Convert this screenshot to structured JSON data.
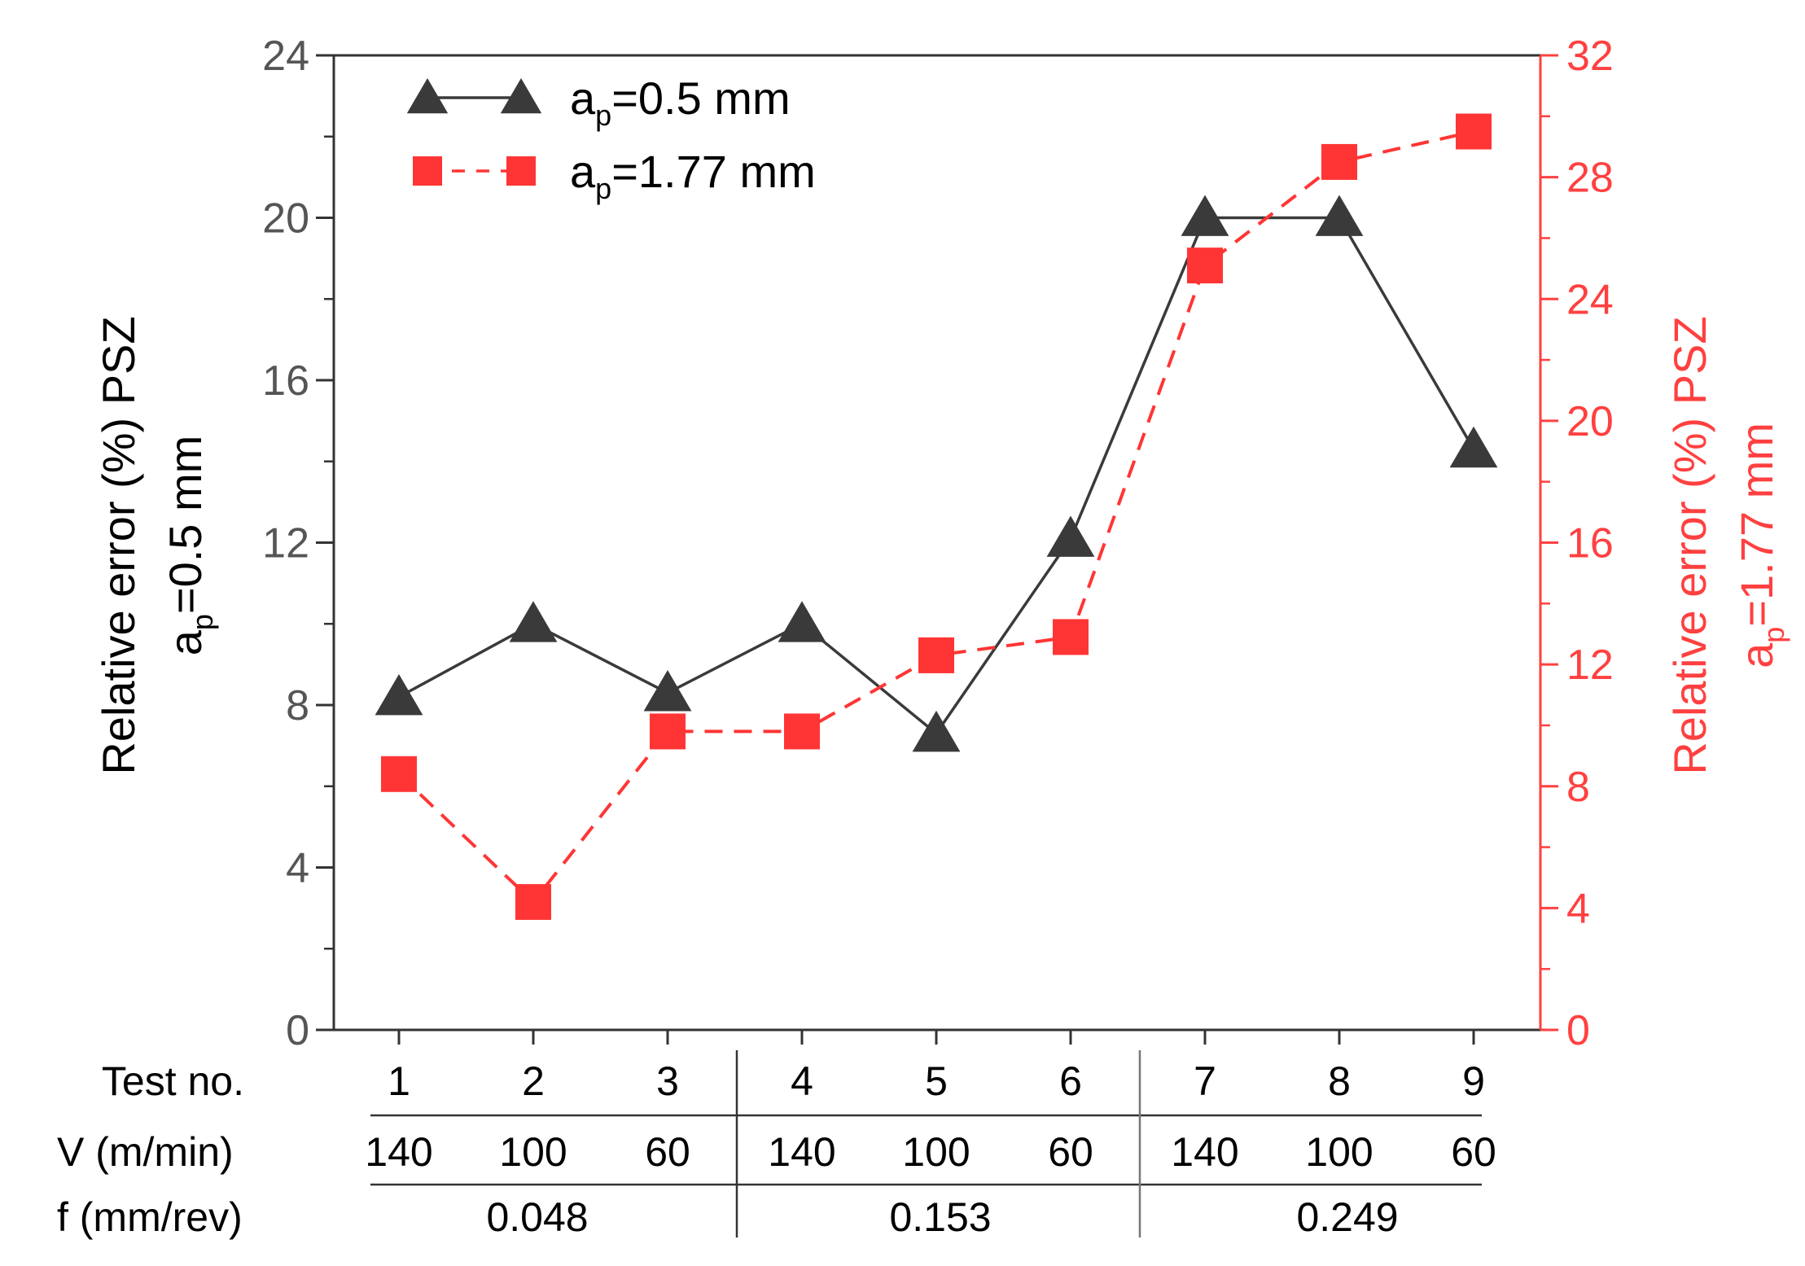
{
  "chart_data": {
    "type": "line",
    "x": [
      1,
      2,
      3,
      4,
      5,
      6,
      7,
      8,
      9
    ],
    "series": [
      {
        "name": "ap=0.5 mm",
        "legend_main": "a",
        "legend_sub": "p",
        "legend_rest": "=0.5 mm",
        "axis": "left",
        "marker": "triangle",
        "line_style": "solid",
        "color": "#3a3a3a",
        "values": [
          8.2,
          10.0,
          8.3,
          10.0,
          7.3,
          12.1,
          20.0,
          20.0,
          14.3
        ]
      },
      {
        "name": "ap=1.77 mm",
        "legend_main": "a",
        "legend_sub": "p",
        "legend_rest": "=1.77 mm",
        "axis": "right",
        "marker": "square",
        "line_style": "dashed",
        "color": "#ff3535",
        "values": [
          8.4,
          4.2,
          9.8,
          9.8,
          12.3,
          12.9,
          25.1,
          28.5,
          29.5
        ]
      }
    ],
    "y_left": {
      "label_line1": "Relative error (%) PSZ",
      "label_line2_main": "a",
      "label_line2_sub": "p",
      "label_line2_rest": "=0.5 mm",
      "ylim": [
        0,
        24
      ],
      "ticks": [
        0,
        4,
        8,
        12,
        16,
        20,
        24
      ],
      "color": "#555555"
    },
    "y_right": {
      "label_line1": "Relative error (%) PSZ",
      "label_line2_main": "a",
      "label_line2_sub": "p",
      "label_line2_rest": "=1.77 mm",
      "ylim": [
        0,
        32
      ],
      "ticks": [
        0,
        4,
        8,
        12,
        16,
        20,
        24,
        28,
        32
      ],
      "color": "#ff4040"
    },
    "table": {
      "row_labels": [
        "Test no.",
        "V (m/min)",
        "f (mm/rev)"
      ],
      "test_no": [
        "1",
        "2",
        "3",
        "4",
        "5",
        "6",
        "7",
        "8",
        "9"
      ],
      "speed": [
        "140",
        "100",
        "60",
        "140",
        "100",
        "60",
        "140",
        "100",
        "60"
      ],
      "feed_groups": [
        "0.048",
        "0.153",
        "0.249"
      ]
    },
    "legend_position": "top-left",
    "grid": false
  }
}
